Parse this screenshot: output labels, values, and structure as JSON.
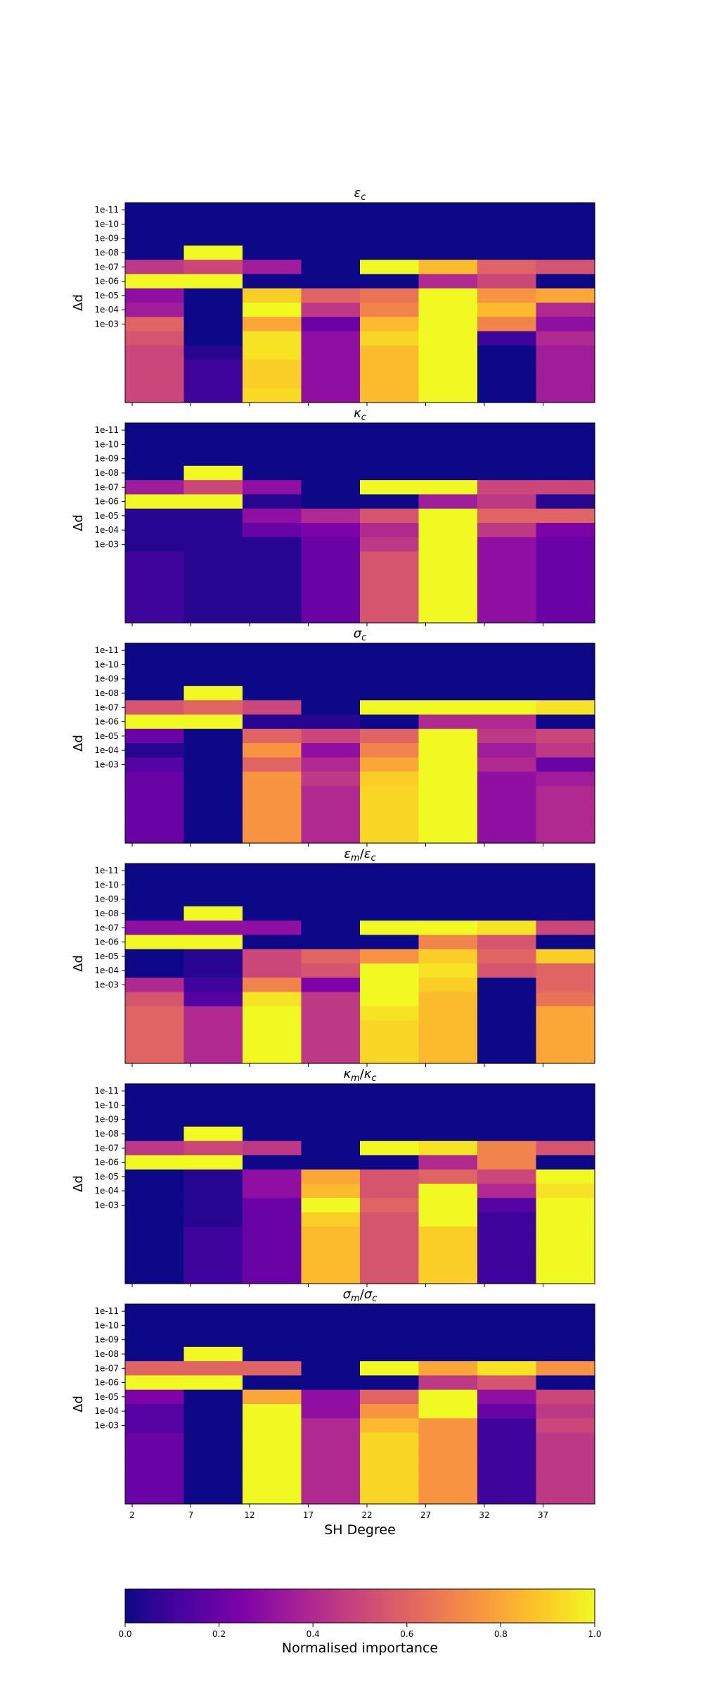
{
  "chart_data": {
    "type": "heatmap",
    "colormap": "plasma",
    "x_tick_labels": [
      "2",
      "7",
      "12",
      "17",
      "22",
      "27",
      "32",
      "37"
    ],
    "y_tick_labels": [
      "1e-11",
      "1e-10",
      "1e-09",
      "1e-08",
      "1e-07",
      "1e-06",
      "1e-05",
      "1e-04",
      "1e-03"
    ],
    "xlabel": "SH Degree",
    "ylabel": "Δd",
    "colorbar": {
      "label": "Normalised importance",
      "range": [
        0.0,
        1.0
      ],
      "ticks": [
        "0.0",
        "0.2",
        "0.4",
        "0.6",
        "0.8",
        "1.0"
      ]
    },
    "panels": [
      {
        "title_base": "ε",
        "title_sub": "c",
        "title_den_base": "",
        "title_den_sub": "",
        "rows": [
          [
            0,
            0,
            0,
            0,
            0,
            0,
            0,
            0
          ],
          [
            0,
            0,
            0,
            0,
            0,
            0,
            0,
            0
          ],
          [
            0,
            0,
            0,
            0,
            0,
            0,
            0,
            0
          ],
          [
            0,
            1.0,
            0,
            0,
            0,
            0,
            0,
            0
          ],
          [
            0.45,
            0.5,
            0.35,
            0,
            1.0,
            0.85,
            0.6,
            0.55
          ],
          [
            1.0,
            1.0,
            0,
            0,
            0,
            0.4,
            0.5,
            0
          ],
          [
            0.3,
            0,
            0.9,
            0.6,
            0.65,
            1.0,
            0.75,
            0.8
          ],
          [
            0.35,
            0,
            1.0,
            0.45,
            0.7,
            1.0,
            0.85,
            0.4
          ],
          [
            0.6,
            0,
            0.8,
            0.2,
            0.85,
            1.0,
            0.7,
            0.3
          ],
          [
            0.55,
            0,
            0.95,
            0.3,
            0.92,
            1.0,
            0.1,
            0.4
          ],
          [
            0.5,
            0.05,
            0.95,
            0.3,
            0.85,
            1.0,
            0,
            0.35
          ],
          [
            0.5,
            0.1,
            0.9,
            0.3,
            0.85,
            1.0,
            0,
            0.35
          ],
          [
            0.5,
            0.1,
            0.9,
            0.3,
            0.85,
            1.0,
            0,
            0.35
          ],
          [
            0.5,
            0.1,
            0.93,
            0.3,
            0.85,
            1.0,
            0,
            0.35
          ]
        ]
      },
      {
        "title_base": "κ",
        "title_sub": "c",
        "title_den_base": "",
        "title_den_sub": "",
        "rows": [
          [
            0,
            0,
            0,
            0,
            0,
            0,
            0,
            0
          ],
          [
            0,
            0,
            0,
            0,
            0,
            0,
            0,
            0
          ],
          [
            0,
            0,
            0,
            0,
            0,
            0,
            0,
            0
          ],
          [
            0,
            1.0,
            0,
            0,
            0,
            0,
            0,
            0
          ],
          [
            0.35,
            0.5,
            0.3,
            0,
            1.0,
            1.0,
            0.5,
            0.5
          ],
          [
            1.0,
            1.0,
            0.05,
            0,
            0,
            0.35,
            0.45,
            0.05
          ],
          [
            0.05,
            0.05,
            0.3,
            0.4,
            0.55,
            1.0,
            0.6,
            0.6
          ],
          [
            0.05,
            0.05,
            0.2,
            0.25,
            0.4,
            1.0,
            0.45,
            0.25
          ],
          [
            0.05,
            0.05,
            0.05,
            0.2,
            0.45,
            1.0,
            0.3,
            0.2
          ],
          [
            0.1,
            0.05,
            0.05,
            0.2,
            0.55,
            1.0,
            0.3,
            0.2
          ],
          [
            0.1,
            0.05,
            0.05,
            0.2,
            0.55,
            1.0,
            0.3,
            0.2
          ],
          [
            0.1,
            0.05,
            0.05,
            0.2,
            0.55,
            1.0,
            0.3,
            0.2
          ],
          [
            0.1,
            0.05,
            0.05,
            0.2,
            0.55,
            1.0,
            0.3,
            0.2
          ],
          [
            0.1,
            0.05,
            0.05,
            0.2,
            0.55,
            1.0,
            0.3,
            0.2
          ]
        ]
      },
      {
        "title_base": "σ",
        "title_sub": "c",
        "title_den_base": "",
        "title_den_sub": "",
        "rows": [
          [
            0,
            0,
            0,
            0,
            0,
            0,
            0,
            0
          ],
          [
            0,
            0,
            0,
            0,
            0,
            0,
            0,
            0
          ],
          [
            0,
            0,
            0,
            0,
            0,
            0,
            0,
            0
          ],
          [
            0,
            1.0,
            0,
            0,
            0,
            0,
            0,
            0
          ],
          [
            0.55,
            0.6,
            0.5,
            0,
            1.0,
            1.0,
            1.0,
            0.95
          ],
          [
            1.0,
            1.0,
            0.05,
            0.05,
            0,
            0.4,
            0.4,
            0
          ],
          [
            0.2,
            0,
            0.6,
            0.5,
            0.6,
            1.0,
            0.45,
            0.5
          ],
          [
            0.05,
            0,
            0.75,
            0.3,
            0.7,
            1.0,
            0.35,
            0.45
          ],
          [
            0.15,
            0,
            0.6,
            0.4,
            0.8,
            1.0,
            0.4,
            0.2
          ],
          [
            0.2,
            0,
            0.75,
            0.45,
            0.9,
            1.0,
            0.3,
            0.35
          ],
          [
            0.2,
            0,
            0.75,
            0.4,
            0.92,
            1.0,
            0.3,
            0.4
          ],
          [
            0.2,
            0,
            0.75,
            0.4,
            0.92,
            1.0,
            0.3,
            0.4
          ],
          [
            0.2,
            0,
            0.75,
            0.4,
            0.92,
            1.0,
            0.3,
            0.4
          ],
          [
            0.2,
            0,
            0.75,
            0.4,
            0.92,
            1.0,
            0.3,
            0.4
          ]
        ]
      },
      {
        "title_base": "ε",
        "title_sub": "m",
        "title_den_base": "ε",
        "title_den_sub": "c",
        "rows": [
          [
            0,
            0,
            0,
            0,
            0,
            0,
            0,
            0
          ],
          [
            0,
            0,
            0,
            0,
            0,
            0,
            0,
            0
          ],
          [
            0,
            0,
            0,
            0,
            0,
            0,
            0,
            0
          ],
          [
            0,
            1.0,
            0,
            0,
            0,
            0,
            0,
            0
          ],
          [
            0.3,
            0.3,
            0.3,
            0,
            1.0,
            1.0,
            0.95,
            0.5
          ],
          [
            1.0,
            1.0,
            0,
            0,
            0,
            0.7,
            0.55,
            0
          ],
          [
            0,
            0.05,
            0.5,
            0.6,
            0.75,
            0.9,
            0.6,
            0.9
          ],
          [
            0,
            0.05,
            0.5,
            0.55,
            1.0,
            0.95,
            0.55,
            0.6
          ],
          [
            0.4,
            0.1,
            0.7,
            0.25,
            1.0,
            0.9,
            0,
            0.6
          ],
          [
            0.55,
            0.15,
            0.95,
            0.45,
            1.0,
            0.85,
            0,
            0.65
          ],
          [
            0.6,
            0.4,
            1.0,
            0.45,
            0.95,
            0.85,
            0,
            0.8
          ],
          [
            0.6,
            0.4,
            1.0,
            0.45,
            0.92,
            0.85,
            0,
            0.8
          ],
          [
            0.6,
            0.4,
            1.0,
            0.45,
            0.92,
            0.85,
            0,
            0.8
          ],
          [
            0.6,
            0.4,
            1.0,
            0.45,
            0.92,
            0.85,
            0,
            0.8
          ]
        ]
      },
      {
        "title_base": "κ",
        "title_sub": "m",
        "title_den_base": "κ",
        "title_den_sub": "c",
        "rows": [
          [
            0,
            0,
            0,
            0,
            0,
            0,
            0,
            0
          ],
          [
            0,
            0,
            0,
            0,
            0,
            0,
            0,
            0
          ],
          [
            0,
            0,
            0,
            0,
            0,
            0,
            0,
            0
          ],
          [
            0,
            1.0,
            0,
            0,
            0,
            0,
            0,
            0
          ],
          [
            0.45,
            0.5,
            0.45,
            0,
            1.0,
            0.95,
            0.7,
            0.55
          ],
          [
            1.0,
            1.0,
            0,
            0,
            0,
            0.4,
            0.7,
            0
          ],
          [
            0,
            0.05,
            0.3,
            0.8,
            0.55,
            0.6,
            0.5,
            1.0
          ],
          [
            0,
            0.05,
            0.3,
            0.85,
            0.55,
            1.0,
            0.4,
            0.95
          ],
          [
            0,
            0.05,
            0.2,
            1.0,
            0.6,
            1.0,
            0.15,
            1.0
          ],
          [
            0,
            0.05,
            0.2,
            0.9,
            0.55,
            1.0,
            0.1,
            1.0
          ],
          [
            0,
            0.1,
            0.2,
            0.85,
            0.55,
            0.9,
            0.1,
            1.0
          ],
          [
            0,
            0.1,
            0.2,
            0.85,
            0.55,
            0.9,
            0.1,
            1.0
          ],
          [
            0,
            0.1,
            0.2,
            0.85,
            0.55,
            0.9,
            0.1,
            1.0
          ],
          [
            0,
            0.1,
            0.2,
            0.85,
            0.55,
            0.9,
            0.1,
            1.0
          ]
        ]
      },
      {
        "title_base": "σ",
        "title_sub": "m",
        "title_den_base": "σ",
        "title_den_sub": "c",
        "rows": [
          [
            0,
            0,
            0,
            0,
            0,
            0,
            0,
            0
          ],
          [
            0,
            0,
            0,
            0,
            0,
            0,
            0,
            0
          ],
          [
            0,
            0,
            0,
            0,
            0,
            0,
            0,
            0
          ],
          [
            0,
            1.0,
            0,
            0,
            0,
            0,
            0,
            0
          ],
          [
            0.6,
            0.6,
            0.6,
            0,
            1.0,
            0.8,
            0.95,
            0.75
          ],
          [
            1.0,
            1.0,
            0,
            0,
            0,
            0.45,
            0.55,
            0
          ],
          [
            0.25,
            0,
            0.8,
            0.3,
            0.6,
            1.0,
            0.3,
            0.5
          ],
          [
            0.15,
            0,
            1.0,
            0.3,
            0.75,
            1.0,
            0.2,
            0.45
          ],
          [
            0.15,
            0,
            1.0,
            0.4,
            0.85,
            0.75,
            0.1,
            0.5
          ],
          [
            0.2,
            0,
            1.0,
            0.4,
            0.92,
            0.75,
            0.1,
            0.45
          ],
          [
            0.2,
            0,
            1.0,
            0.4,
            0.92,
            0.75,
            0.1,
            0.45
          ],
          [
            0.2,
            0,
            1.0,
            0.4,
            0.92,
            0.75,
            0.1,
            0.45
          ],
          [
            0.2,
            0,
            1.0,
            0.4,
            0.92,
            0.75,
            0.1,
            0.45
          ],
          [
            0.2,
            0,
            1.0,
            0.4,
            0.92,
            0.75,
            0.1,
            0.45
          ]
        ]
      }
    ]
  }
}
